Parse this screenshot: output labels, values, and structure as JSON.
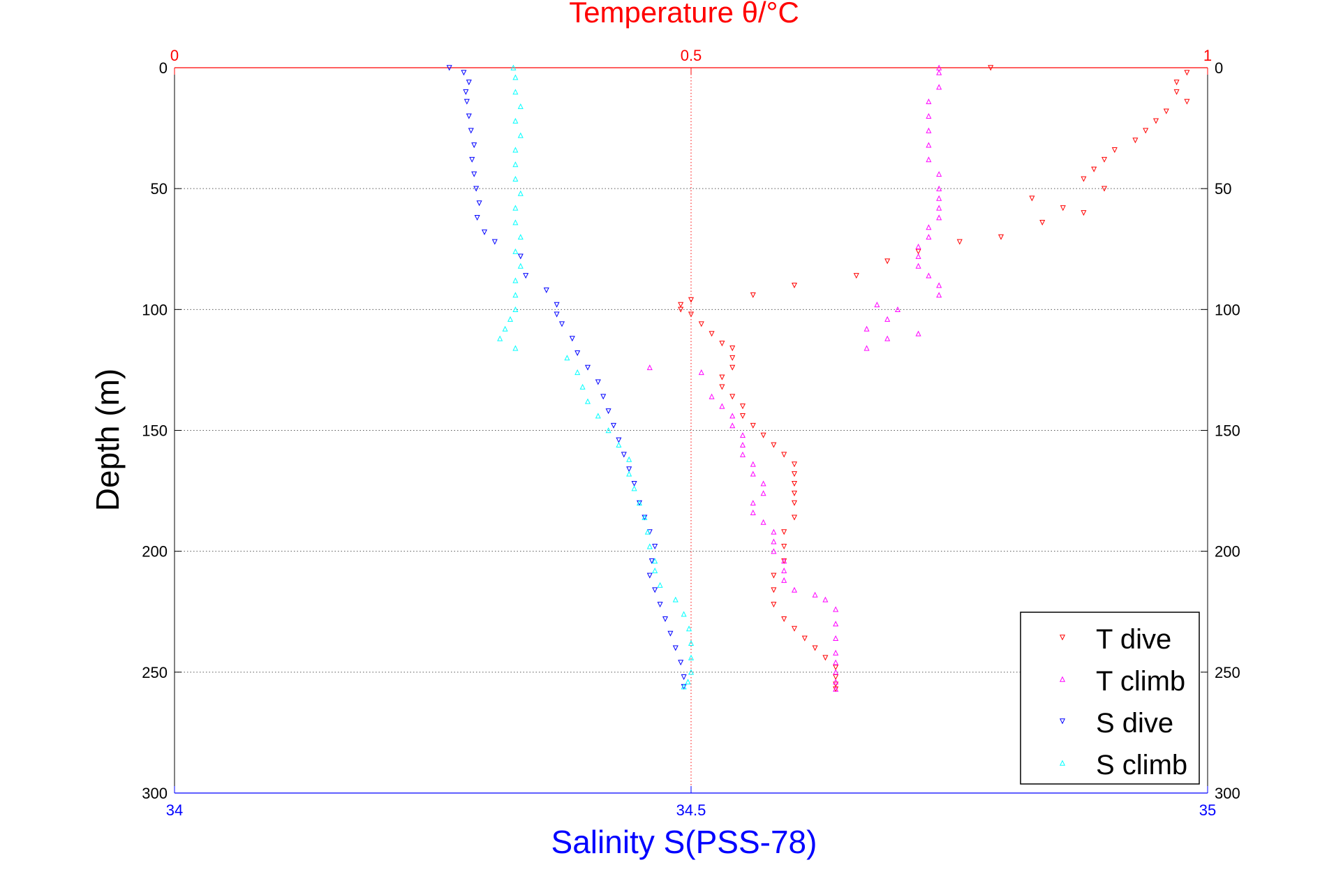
{
  "chart_data": {
    "type": "scatter",
    "title": "Temperature θ/°C",
    "xlabel_top": "Temperature θ/°C",
    "xlabel_bottom": "Salinity S(PSS-78)",
    "ylabel": "Depth (m)",
    "top_axis": {
      "range": [
        0,
        1
      ],
      "ticks": [
        "0",
        "0.5",
        "1"
      ],
      "color": "#ff0000"
    },
    "bottom_axis": {
      "range": [
        34,
        35
      ],
      "ticks": [
        "34",
        "34.5",
        "35"
      ],
      "color": "#0000ff"
    },
    "y_axis": {
      "range": [
        0,
        300
      ],
      "reversed": true,
      "ticks": [
        "0",
        "50",
        "100",
        "150",
        "200",
        "250",
        "300"
      ]
    },
    "grid": true,
    "legend_position": "bottom-right",
    "series": [
      {
        "name": "T dive",
        "axis": "temperature",
        "marker": "triangle-down",
        "color": "#ff0000",
        "points": [
          [
            0.79,
            0
          ],
          [
            0.98,
            2
          ],
          [
            0.97,
            6
          ],
          [
            0.97,
            10
          ],
          [
            0.98,
            14
          ],
          [
            0.96,
            18
          ],
          [
            0.95,
            22
          ],
          [
            0.94,
            26
          ],
          [
            0.93,
            30
          ],
          [
            0.91,
            34
          ],
          [
            0.9,
            38
          ],
          [
            0.89,
            42
          ],
          [
            0.88,
            46
          ],
          [
            0.9,
            50
          ],
          [
            0.83,
            54
          ],
          [
            0.86,
            58
          ],
          [
            0.88,
            60
          ],
          [
            0.84,
            64
          ],
          [
            0.8,
            70
          ],
          [
            0.76,
            72
          ],
          [
            0.72,
            76
          ],
          [
            0.69,
            80
          ],
          [
            0.66,
            86
          ],
          [
            0.6,
            90
          ],
          [
            0.56,
            94
          ],
          [
            0.5,
            96
          ],
          [
            0.49,
            98
          ],
          [
            0.49,
            100
          ],
          [
            0.5,
            102
          ],
          [
            0.51,
            106
          ],
          [
            0.52,
            110
          ],
          [
            0.53,
            114
          ],
          [
            0.54,
            116
          ],
          [
            0.54,
            120
          ],
          [
            0.54,
            124
          ],
          [
            0.53,
            128
          ],
          [
            0.53,
            132
          ],
          [
            0.54,
            136
          ],
          [
            0.55,
            140
          ],
          [
            0.55,
            144
          ],
          [
            0.56,
            148
          ],
          [
            0.57,
            152
          ],
          [
            0.58,
            156
          ],
          [
            0.59,
            160
          ],
          [
            0.6,
            164
          ],
          [
            0.6,
            168
          ],
          [
            0.6,
            172
          ],
          [
            0.6,
            176
          ],
          [
            0.6,
            180
          ],
          [
            0.6,
            186
          ],
          [
            0.59,
            192
          ],
          [
            0.59,
            198
          ],
          [
            0.59,
            204
          ],
          [
            0.58,
            210
          ],
          [
            0.58,
            216
          ],
          [
            0.58,
            222
          ],
          [
            0.59,
            228
          ],
          [
            0.6,
            232
          ],
          [
            0.61,
            236
          ],
          [
            0.62,
            240
          ],
          [
            0.63,
            244
          ],
          [
            0.64,
            248
          ],
          [
            0.64,
            252
          ],
          [
            0.64,
            255
          ],
          [
            0.64,
            257
          ]
        ]
      },
      {
        "name": "T climb",
        "axis": "temperature",
        "marker": "triangle-up",
        "color": "#ff00ff",
        "points": [
          [
            0.64,
            257
          ],
          [
            0.64,
            254
          ],
          [
            0.64,
            250
          ],
          [
            0.64,
            246
          ],
          [
            0.64,
            242
          ],
          [
            0.64,
            236
          ],
          [
            0.64,
            230
          ],
          [
            0.64,
            224
          ],
          [
            0.63,
            220
          ],
          [
            0.62,
            218
          ],
          [
            0.6,
            216
          ],
          [
            0.59,
            212
          ],
          [
            0.59,
            208
          ],
          [
            0.59,
            204
          ],
          [
            0.58,
            200
          ],
          [
            0.58,
            196
          ],
          [
            0.58,
            192
          ],
          [
            0.57,
            188
          ],
          [
            0.56,
            184
          ],
          [
            0.56,
            180
          ],
          [
            0.57,
            176
          ],
          [
            0.57,
            172
          ],
          [
            0.56,
            168
          ],
          [
            0.56,
            164
          ],
          [
            0.55,
            160
          ],
          [
            0.55,
            156
          ],
          [
            0.55,
            152
          ],
          [
            0.54,
            148
          ],
          [
            0.54,
            144
          ],
          [
            0.53,
            140
          ],
          [
            0.52,
            136
          ],
          [
            0.46,
            124
          ],
          [
            0.51,
            126
          ],
          [
            0.67,
            116
          ],
          [
            0.69,
            112
          ],
          [
            0.72,
            110
          ],
          [
            0.67,
            108
          ],
          [
            0.69,
            104
          ],
          [
            0.7,
            100
          ],
          [
            0.68,
            98
          ],
          [
            0.74,
            94
          ],
          [
            0.74,
            90
          ],
          [
            0.73,
            86
          ],
          [
            0.72,
            82
          ],
          [
            0.72,
            78
          ],
          [
            0.72,
            74
          ],
          [
            0.73,
            70
          ],
          [
            0.73,
            66
          ],
          [
            0.74,
            62
          ],
          [
            0.74,
            58
          ],
          [
            0.74,
            54
          ],
          [
            0.74,
            50
          ],
          [
            0.74,
            44
          ],
          [
            0.73,
            38
          ],
          [
            0.73,
            32
          ],
          [
            0.73,
            26
          ],
          [
            0.73,
            20
          ],
          [
            0.73,
            14
          ],
          [
            0.74,
            8
          ],
          [
            0.74,
            2
          ],
          [
            0.74,
            0
          ]
        ]
      },
      {
        "name": "S dive",
        "axis": "salinity",
        "marker": "triangle-down",
        "color": "#0000ff",
        "points": [
          [
            34.266,
            0
          ],
          [
            34.28,
            2
          ],
          [
            34.285,
            6
          ],
          [
            34.282,
            10
          ],
          [
            34.283,
            14
          ],
          [
            34.285,
            20
          ],
          [
            34.287,
            26
          ],
          [
            34.29,
            32
          ],
          [
            34.288,
            38
          ],
          [
            34.29,
            44
          ],
          [
            34.292,
            50
          ],
          [
            34.295,
            56
          ],
          [
            34.293,
            62
          ],
          [
            34.3,
            68
          ],
          [
            34.31,
            72
          ],
          [
            34.335,
            78
          ],
          [
            34.34,
            86
          ],
          [
            34.36,
            92
          ],
          [
            34.37,
            98
          ],
          [
            34.37,
            102
          ],
          [
            34.375,
            106
          ],
          [
            34.385,
            112
          ],
          [
            34.39,
            118
          ],
          [
            34.4,
            124
          ],
          [
            34.41,
            130
          ],
          [
            34.415,
            136
          ],
          [
            34.42,
            142
          ],
          [
            34.425,
            148
          ],
          [
            34.43,
            154
          ],
          [
            34.435,
            160
          ],
          [
            34.44,
            166
          ],
          [
            34.445,
            172
          ],
          [
            34.45,
            180
          ],
          [
            34.455,
            186
          ],
          [
            34.46,
            192
          ],
          [
            34.465,
            198
          ],
          [
            34.462,
            204
          ],
          [
            34.46,
            210
          ],
          [
            34.465,
            216
          ],
          [
            34.47,
            222
          ],
          [
            34.475,
            228
          ],
          [
            34.48,
            234
          ],
          [
            34.485,
            240
          ],
          [
            34.49,
            246
          ],
          [
            34.493,
            252
          ],
          [
            34.493,
            256
          ]
        ]
      },
      {
        "name": "S climb",
        "axis": "salinity",
        "marker": "triangle-up",
        "color": "#00ffff",
        "points": [
          [
            34.493,
            256
          ],
          [
            34.497,
            254
          ],
          [
            34.5,
            250
          ],
          [
            34.5,
            244
          ],
          [
            34.5,
            238
          ],
          [
            34.498,
            232
          ],
          [
            34.493,
            226
          ],
          [
            34.485,
            220
          ],
          [
            34.47,
            214
          ],
          [
            34.465,
            208
          ],
          [
            34.465,
            204
          ],
          [
            34.46,
            198
          ],
          [
            34.458,
            192
          ],
          [
            34.455,
            186
          ],
          [
            34.45,
            180
          ],
          [
            34.445,
            174
          ],
          [
            34.44,
            168
          ],
          [
            34.44,
            162
          ],
          [
            34.43,
            156
          ],
          [
            34.42,
            150
          ],
          [
            34.41,
            144
          ],
          [
            34.4,
            138
          ],
          [
            34.395,
            132
          ],
          [
            34.39,
            126
          ],
          [
            34.38,
            120
          ],
          [
            34.33,
            116
          ],
          [
            34.315,
            112
          ],
          [
            34.32,
            108
          ],
          [
            34.325,
            104
          ],
          [
            34.33,
            100
          ],
          [
            34.33,
            94
          ],
          [
            34.33,
            88
          ],
          [
            34.335,
            82
          ],
          [
            34.33,
            76
          ],
          [
            34.335,
            70
          ],
          [
            34.33,
            64
          ],
          [
            34.33,
            58
          ],
          [
            34.335,
            52
          ],
          [
            34.33,
            46
          ],
          [
            34.33,
            40
          ],
          [
            34.33,
            34
          ],
          [
            34.335,
            28
          ],
          [
            34.33,
            22
          ],
          [
            34.335,
            16
          ],
          [
            34.33,
            10
          ],
          [
            34.33,
            4
          ],
          [
            34.328,
            0
          ]
        ]
      }
    ]
  }
}
